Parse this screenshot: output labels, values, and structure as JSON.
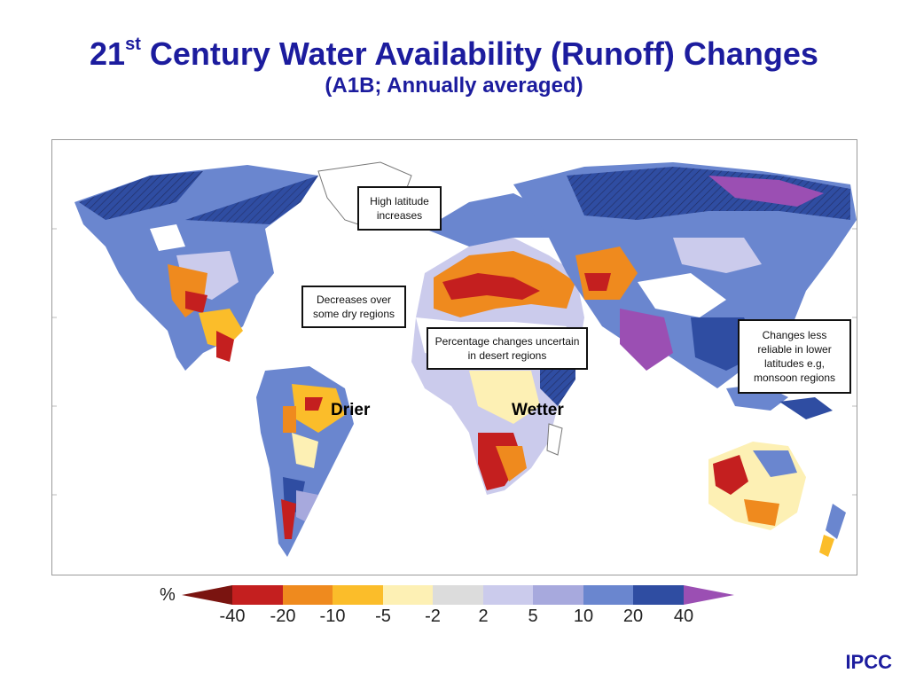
{
  "header": {
    "title_number": "21",
    "title_superscript": "st",
    "title_rest": " Century Water Availability (Runoff) Changes",
    "subtitle": "(A1B; Annually averaged)"
  },
  "map": {
    "callouts": {
      "high_latitude": "High latitude increases",
      "dry_regions": "Decreases over some dry regions",
      "desert_regions": "Percentage changes uncertain in desert regions",
      "low_latitudes": "Changes less reliable in lower latitudes e.g, monsoon regions"
    },
    "labels": {
      "drier": "Drier",
      "wetter": "Wetter"
    }
  },
  "legend": {
    "unit": "%",
    "ticks": [
      "-40",
      "-20",
      "-10",
      "-5",
      "-2",
      "2",
      "5",
      "10",
      "20",
      "40"
    ],
    "colors": [
      "#7a1410",
      "#c41f1f",
      "#ef8a1e",
      "#fbbd2a",
      "#fdf0b4",
      "#dcdcdc",
      "#cbcbec",
      "#a7a9dd",
      "#6a86cf",
      "#2f4da2",
      "#9b4fb3"
    ]
  },
  "source": "IPCC"
}
